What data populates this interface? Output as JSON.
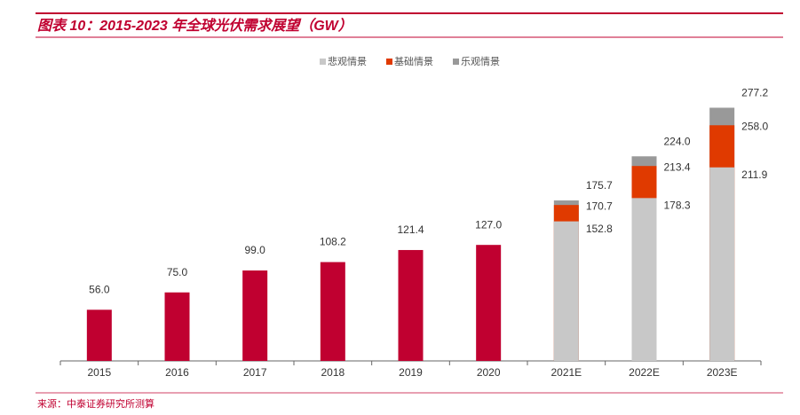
{
  "chart_data": {
    "type": "bar",
    "title": "图表 10：2015-2023 年全球光伏需求展望（GW）",
    "source": "来源：中泰证券研究所测算",
    "categories": [
      "2015",
      "2016",
      "2017",
      "2018",
      "2019",
      "2020",
      "2021E",
      "2022E",
      "2023E"
    ],
    "overlap": true,
    "ylim": [
      0,
      300
    ],
    "legend": "top",
    "series": [
      {
        "color": "#c00030",
        "values": [
          56,
          75,
          99,
          108.2,
          121.4,
          127,
          null,
          null,
          null
        ],
        "value_labels": [
          "56.0",
          "75.0",
          "99.0",
          "108.2",
          "121.4",
          "127.0",
          null,
          null,
          null
        ]
      },
      {
        "name": "乐观情景",
        "color": "#999999",
        "values": [
          null,
          null,
          null,
          null,
          null,
          null,
          175.7,
          224,
          277.2
        ],
        "value_labels": [
          null,
          null,
          null,
          null,
          null,
          null,
          "175.7",
          "224.0",
          "277.2"
        ]
      },
      {
        "name": "基础情景",
        "color": "#e03a00",
        "values": [
          null,
          null,
          null,
          null,
          null,
          null,
          170.7,
          213.4,
          258
        ],
        "value_labels": [
          null,
          null,
          null,
          null,
          null,
          null,
          "170.7",
          "213.4",
          "258.0"
        ]
      },
      {
        "name": "悲观情景",
        "color": "#c8c8c8",
        "values": [
          null,
          null,
          null,
          null,
          null,
          null,
          152.8,
          178.3,
          211.9
        ],
        "value_labels": [
          null,
          null,
          null,
          null,
          null,
          null,
          "152.8",
          "178.3",
          "211.9"
        ]
      }
    ]
  }
}
